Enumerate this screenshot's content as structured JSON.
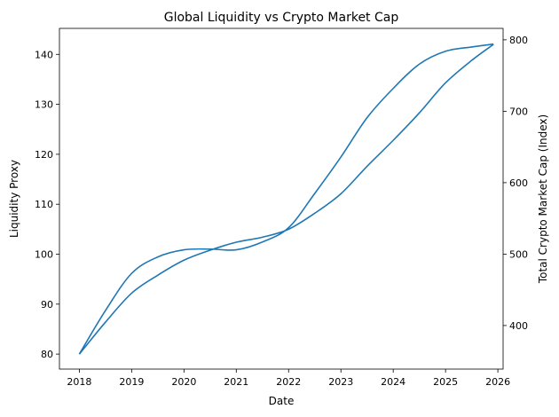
{
  "chart_data": {
    "type": "line",
    "title": "Global Liquidity vs Crypto Market Cap",
    "xlabel": "Date",
    "ylabel_left": "Liquidity Proxy",
    "ylabel_right": "Total Crypto Market Cap (Index)",
    "xlim": [
      2017.62,
      2026.1
    ],
    "ylim_left": [
      77.0,
      145.2
    ],
    "ylim_right": [
      339,
      816
    ],
    "x_ticks": [
      "2018",
      "2019",
      "2020",
      "2021",
      "2022",
      "2023",
      "2024",
      "2025",
      "2026"
    ],
    "y_ticks_left": [
      80,
      90,
      100,
      110,
      120,
      130,
      140
    ],
    "y_ticks_right": [
      400,
      500,
      600,
      700,
      800
    ],
    "grid": false,
    "color": "#1f77b4",
    "series": [
      {
        "axis": "left",
        "x": [
          "2018-01",
          "2018-07",
          "2019-01",
          "2019-07",
          "2020-01",
          "2020-07",
          "2021-01",
          "2021-07",
          "2022-01",
          "2022-07",
          "2023-01",
          "2023-07",
          "2024-01",
          "2024-07",
          "2025-01",
          "2025-07",
          "2025-12"
        ],
        "values": [
          80,
          86.4,
          92.2,
          95.8,
          98.8,
          100.8,
          102.4,
          103.4,
          105.0,
          108.2,
          112.1,
          117.6,
          122.8,
          128.3,
          134.3,
          138.8,
          142.0
        ]
      },
      {
        "axis": "right",
        "x": [
          "2018-01",
          "2018-07",
          "2019-01",
          "2019-07",
          "2020-01",
          "2020-07",
          "2021-01",
          "2021-07",
          "2022-01",
          "2022-07",
          "2023-01",
          "2023-07",
          "2024-01",
          "2024-07",
          "2025-01",
          "2025-07",
          "2025-12"
        ],
        "values": [
          360,
          421,
          473,
          496,
          506,
          507,
          506,
          517,
          537,
          585,
          636,
          691,
          732,
          766,
          784,
          790,
          794
        ]
      }
    ]
  }
}
